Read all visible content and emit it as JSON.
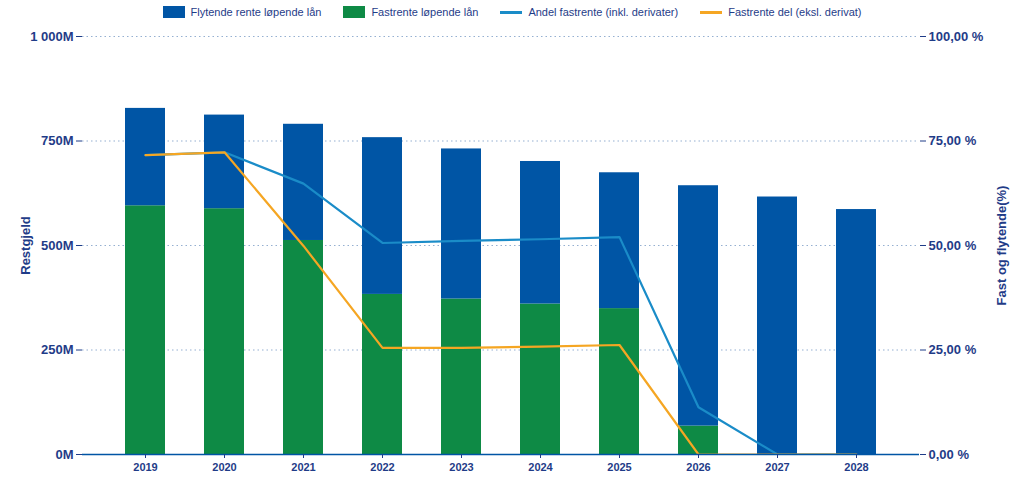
{
  "chart_data": {
    "type": "bar",
    "stacked": true,
    "grid": true,
    "legend": "top",
    "categories": [
      "2019",
      "2020",
      "2021",
      "2022",
      "2023",
      "2024",
      "2025",
      "2026",
      "2027",
      "2028"
    ],
    "y_label": "Restgjeld",
    "y2_label": "Fast og flytende(%)",
    "ylim": [
      0,
      1000
    ],
    "yticks": [
      {
        "value": 0,
        "label": "0M"
      },
      {
        "value": 250,
        "label": "250M"
      },
      {
        "value": 500,
        "label": "500M"
      },
      {
        "value": 750,
        "label": "750M"
      },
      {
        "value": 1000,
        "label": "1 000M"
      }
    ],
    "y2lim": [
      0,
      100
    ],
    "y2ticks": [
      {
        "value": 0,
        "label": "0,00 %"
      },
      {
        "value": 25,
        "label": "25,00 %"
      },
      {
        "value": 50,
        "label": "50,00 %"
      },
      {
        "value": 75,
        "label": "75,00 %"
      },
      {
        "value": 100,
        "label": "100,00 %"
      }
    ],
    "series": [
      {
        "name": "Flytende rente løpende lån",
        "type": "bar",
        "color": "#0055a5",
        "values": [
          233,
          224,
          278,
          375,
          359,
          341,
          325,
          575,
          616,
          586
        ]
      },
      {
        "name": "Fastrente løpende lån",
        "type": "bar",
        "color": "#0e8a45",
        "values": [
          595,
          588,
          512,
          383,
          372,
          360,
          349,
          68,
          0,
          0
        ]
      },
      {
        "name": "Andel fastrente (inkl. derivater)",
        "type": "line",
        "axis": "y2",
        "color": "#1a8cc8",
        "values": [
          71.6,
          72.3,
          64.8,
          50.6,
          51.1,
          51.5,
          52.0,
          11.3,
          0,
          0
        ]
      },
      {
        "name": "Fastrente del (eksl. derivat)",
        "type": "line",
        "axis": "y2",
        "color": "#f5a623",
        "values": [
          71.6,
          72.3,
          49.9,
          25.5,
          25.5,
          25.8,
          26.2,
          0,
          0,
          0
        ]
      }
    ]
  }
}
